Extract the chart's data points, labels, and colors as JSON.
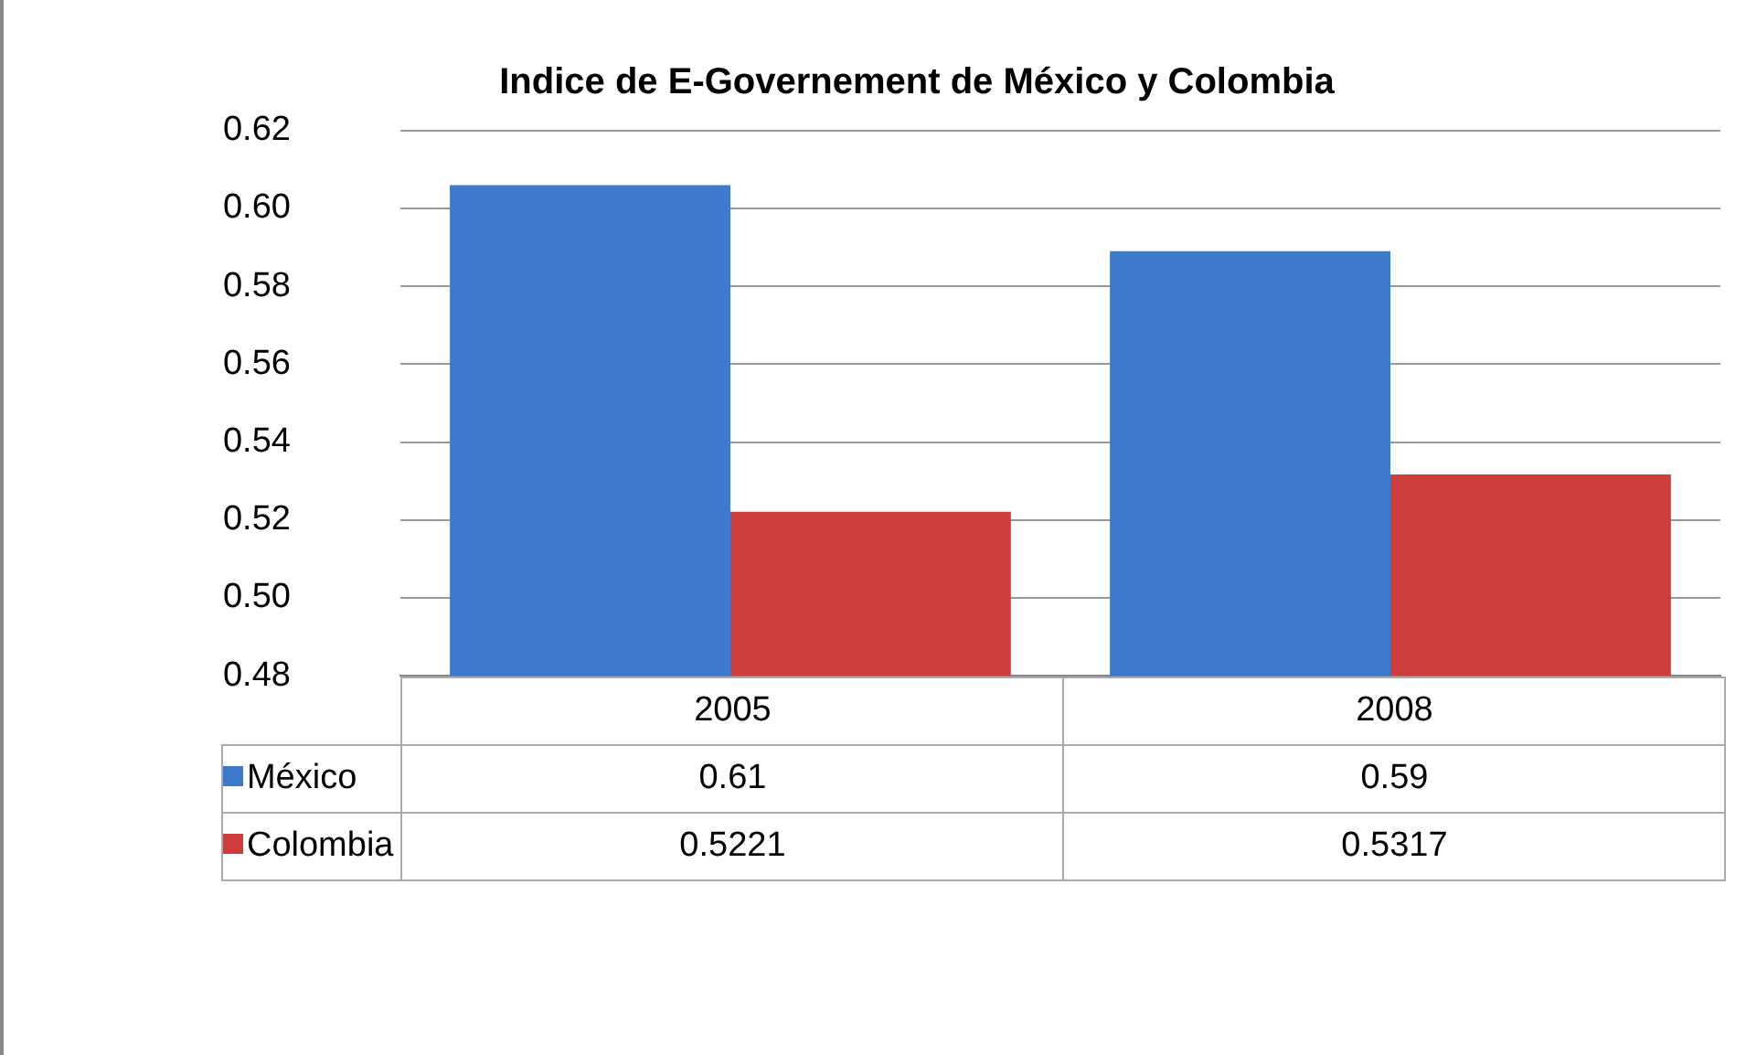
{
  "chart_data": {
    "type": "bar",
    "title": "Indice de E-Governement de México y Colombia",
    "categories": [
      "2005",
      "2008"
    ],
    "series": [
      {
        "name": "México",
        "color": "#3d7acb",
        "values": [
          0.606,
          0.589
        ],
        "value_labels": [
          "0.61",
          "0.59"
        ]
      },
      {
        "name": "Colombia",
        "color": "#cc3d3b",
        "values": [
          0.5221,
          0.5317
        ],
        "value_labels": [
          "0.5221",
          "0.5317"
        ]
      }
    ],
    "ylim": [
      0.48,
      0.62
    ],
    "yticks": [
      {
        "value": 0.48,
        "label": "0.48"
      },
      {
        "value": 0.5,
        "label": "0.50"
      },
      {
        "value": 0.52,
        "label": "0.52"
      },
      {
        "value": 0.54,
        "label": "0.54"
      },
      {
        "value": 0.56,
        "label": "0.56"
      },
      {
        "value": 0.58,
        "label": "0.58"
      },
      {
        "value": 0.6,
        "label": "0.60"
      },
      {
        "value": 0.62,
        "label": "0.62"
      }
    ],
    "grid": "y",
    "legend": "bottom"
  }
}
